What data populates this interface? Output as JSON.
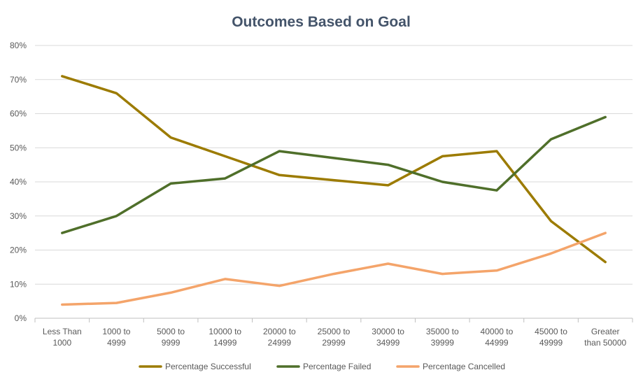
{
  "chart_data": {
    "type": "line",
    "title": "Outcomes Based on Goal",
    "xlabel": "",
    "ylabel": "",
    "ylim": [
      0,
      80
    ],
    "y_ticks": [
      "0%",
      "10%",
      "20%",
      "30%",
      "40%",
      "50%",
      "60%",
      "70%",
      "80%"
    ],
    "y_tick_values": [
      0,
      10,
      20,
      30,
      40,
      50,
      60,
      70,
      80
    ],
    "grid": true,
    "legend_position": "bottom",
    "categories": [
      [
        "Less Than",
        "1000"
      ],
      [
        "1000 to",
        "4999"
      ],
      [
        "5000 to",
        "9999"
      ],
      [
        "10000 to",
        "14999"
      ],
      [
        "20000 to",
        "24999"
      ],
      [
        "25000 to",
        "29999"
      ],
      [
        "30000 to",
        "34999"
      ],
      [
        "35000 to",
        "39999"
      ],
      [
        "40000 to",
        "44999"
      ],
      [
        "45000 to",
        "49999"
      ],
      [
        "Greater",
        "than 50000"
      ]
    ],
    "series": [
      {
        "name": "Percentage Successful",
        "color": "#9c7b00",
        "values": [
          71,
          66,
          53,
          47.5,
          42,
          40.5,
          39,
          47.5,
          49,
          28.5,
          16.5
        ]
      },
      {
        "name": "Percentage Failed",
        "color": "#4f6f2a",
        "values": [
          25,
          30,
          39.5,
          41,
          49,
          47,
          45,
          40,
          37.5,
          52.5,
          59
        ]
      },
      {
        "name": "Percentage Cancelled",
        "color": "#f4a46a",
        "values": [
          4,
          4.5,
          7.5,
          11.5,
          9.5,
          13,
          16,
          13,
          14,
          19,
          25
        ]
      }
    ]
  }
}
